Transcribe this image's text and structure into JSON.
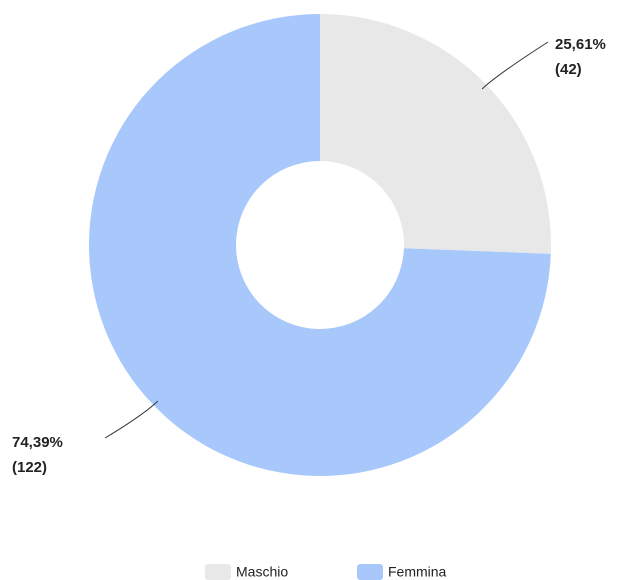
{
  "chart_data": {
    "type": "donut",
    "categories": [
      "Maschio",
      "Femmina"
    ],
    "values": [
      42,
      122
    ],
    "value_labels": [
      [
        "25,61%",
        "(42)"
      ],
      [
        "74,39%",
        "(122)"
      ]
    ],
    "colors": [
      "#e8e8e8",
      "#a8c8fc"
    ],
    "legend": "bottom"
  }
}
